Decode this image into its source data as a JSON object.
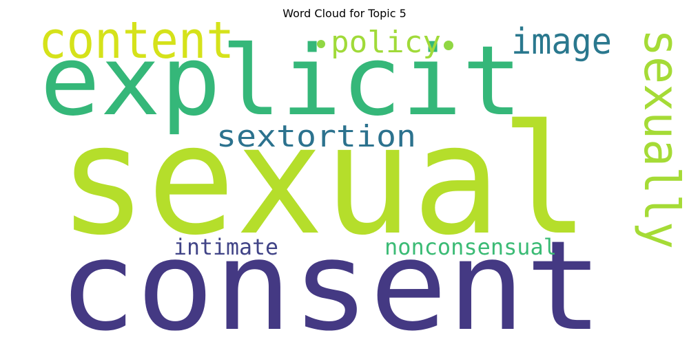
{
  "title": "Word Cloud for Topic 5",
  "words": [
    {
      "text": "sexual",
      "color": "#b5de2b"
    },
    {
      "text": "consent",
      "color": "#443983"
    },
    {
      "text": "explicit",
      "color": "#35b779"
    },
    {
      "text": "content",
      "color": "#d5e21a"
    },
    {
      "text": "image",
      "color": "#2a788e"
    },
    {
      "text": "sextortion",
      "color": "#2c728e"
    },
    {
      "text": "sexually",
      "color": "#a5db36"
    },
    {
      "text": "policy",
      "color": "#a0da39"
    },
    {
      "text": "intimate",
      "color": "#414487"
    },
    {
      "text": "nonconsensual",
      "color": "#3bbb75"
    }
  ],
  "dots": [
    {
      "color": "#90d743"
    },
    {
      "color": "#90d743"
    }
  ]
}
